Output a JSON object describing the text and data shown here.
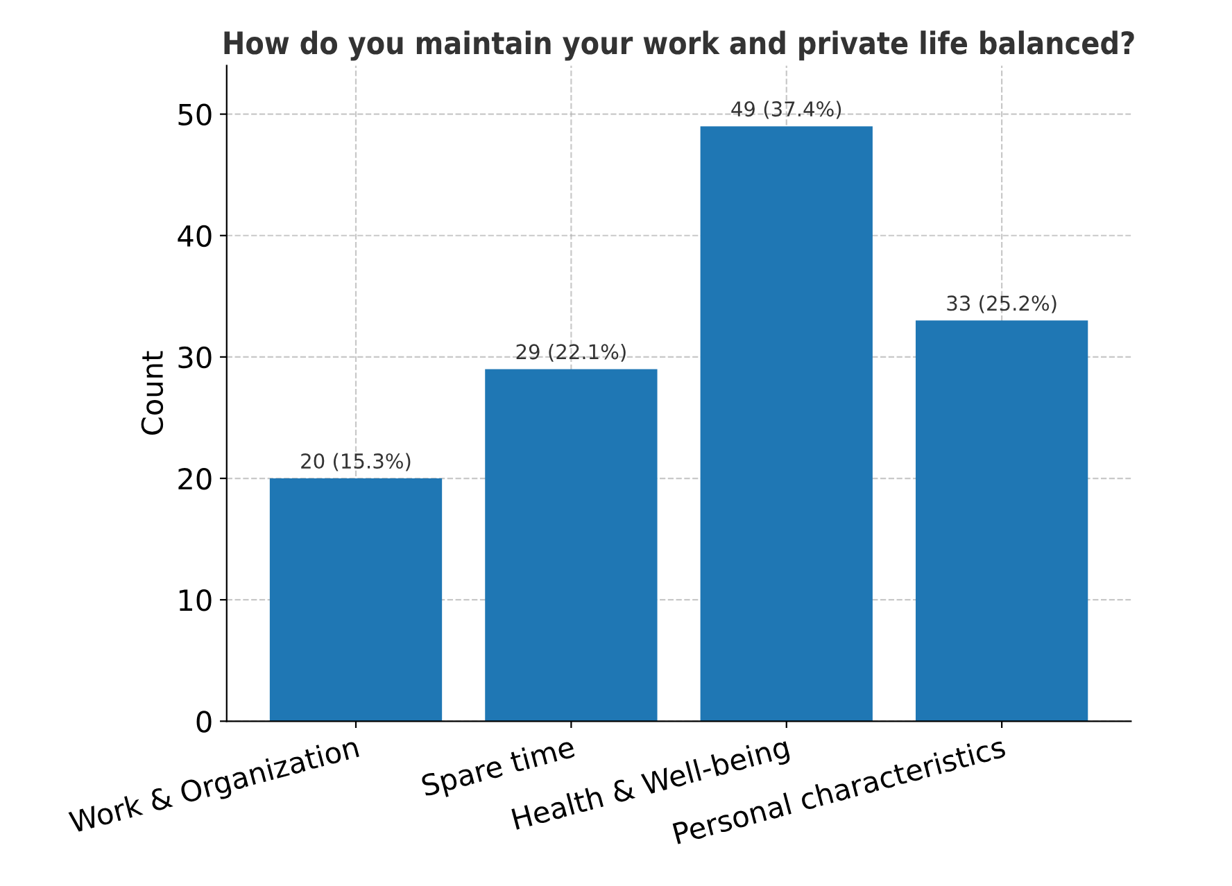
{
  "chart_data": {
    "type": "bar",
    "title": "How do you maintain your work and private life balanced?",
    "ylabel": "Count",
    "categories": [
      "Work & Organization",
      "Spare time",
      "Health & Well-being",
      "Personal characteristics"
    ],
    "values": [
      20,
      29,
      49,
      33
    ],
    "value_labels": [
      "20 (15.3%)",
      "29 (22.1%)",
      "49 (37.4%)",
      "33 (25.2%)"
    ],
    "color": "#1f77b4",
    "ylim": [
      0,
      54
    ],
    "yticks": [
      0,
      10,
      20,
      30,
      40,
      50
    ],
    "grid": true
  }
}
